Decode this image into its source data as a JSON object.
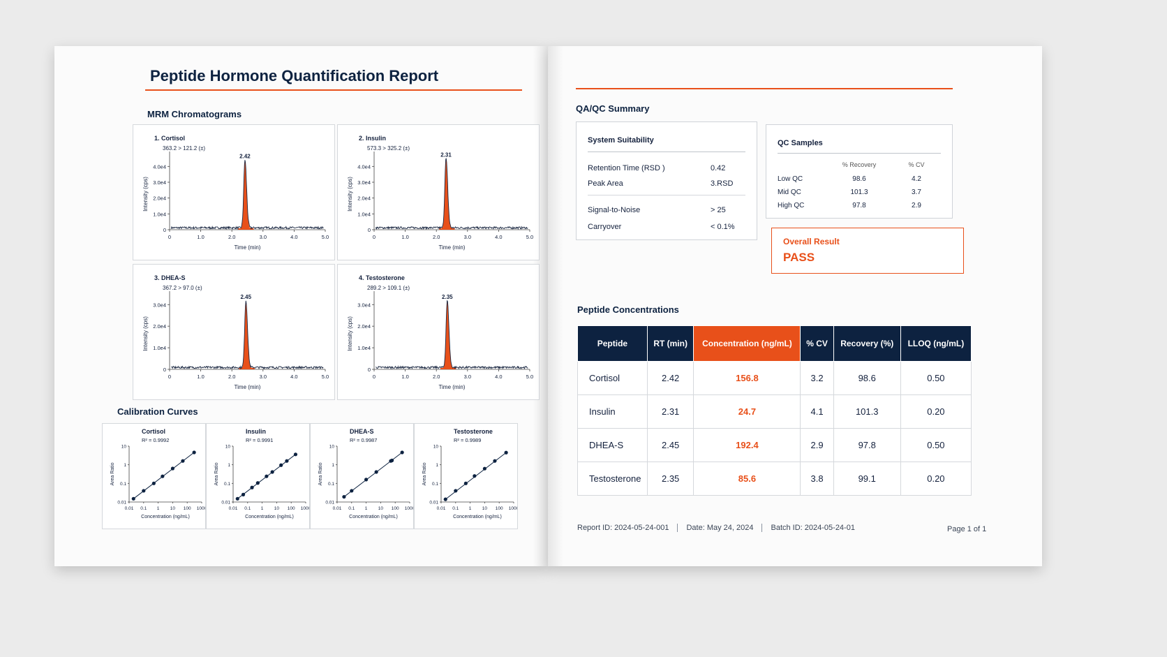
{
  "header": {
    "title": "Peptide Hormone Quantification Report"
  },
  "chromatograms": {
    "heading": "MRM Chromatograms",
    "x_label": "Time (min)",
    "y_label": "Intensity (cps)",
    "color": "#e8501a",
    "xlim": [
      0,
      5
    ],
    "xticks": [
      0,
      {
        "value": 1,
        "label": "1.0"
      },
      {
        "value": 2,
        "label": "2.0"
      },
      {
        "value": 3,
        "label": "3.0"
      },
      {
        "value": 4,
        "label": "4.0"
      },
      {
        "value": 5,
        "label": "5.0"
      }
    ],
    "panels": [
      {
        "label": "1. Cortisol",
        "transition": "363.2 > 121.2 (±)",
        "peak_rt": 2.42,
        "peak_height": 43000,
        "ylim": [
          0,
          45000
        ],
        "yticks": [
          0,
          {
            "value": 10000,
            "label": "1.0e4"
          },
          {
            "value": 20000,
            "label": "2.0e4"
          },
          {
            "value": 30000,
            "label": "3.0e4"
          },
          {
            "value": 40000,
            "label": "4.0e4"
          }
        ]
      },
      {
        "label": "2. Insulin",
        "transition": "573.3 > 325.2 (±)",
        "peak_rt": 2.31,
        "peak_height": 44000,
        "ylim": [
          0,
          45000
        ],
        "yticks": [
          0,
          {
            "value": 10000,
            "label": "1.0e4"
          },
          {
            "value": 20000,
            "label": "2.0e4"
          },
          {
            "value": 30000,
            "label": "3.0e4"
          },
          {
            "value": 40000,
            "label": "4.0e4"
          }
        ]
      },
      {
        "label": "3. DHEA-S",
        "transition": "367.2 > 97.0 (±)",
        "peak_rt": 2.45,
        "peak_height": 31000,
        "ylim": [
          0,
          33000
        ],
        "yticks": [
          0,
          {
            "value": 10000,
            "label": "1.0e4"
          },
          {
            "value": 20000,
            "label": "2.0e4"
          },
          {
            "value": 30000,
            "label": "3.0e4"
          }
        ]
      },
      {
        "label": "4. Testosterone",
        "transition": "289.2 > 109.1 (±)",
        "peak_rt": 2.35,
        "peak_height": 31000,
        "ylim": [
          0,
          33000
        ],
        "yticks": [
          0,
          {
            "value": 10000,
            "label": "1.0e4"
          },
          {
            "value": 20000,
            "label": "2.0e4"
          },
          {
            "value": 30000,
            "label": "3.0e4"
          }
        ]
      }
    ]
  },
  "calibration": {
    "heading": "Calibration Curves",
    "x_label": "Concentration (ng/mL)",
    "y_label": "Area Ratio",
    "log_scale": true,
    "color": "#0d2240",
    "xlim": [
      0.01,
      1000
    ],
    "xticks": [
      0.01,
      0.1,
      1,
      10,
      100,
      1000
    ],
    "ylim": [
      0.01,
      10
    ],
    "yticks": [
      0.01,
      0.1,
      1,
      10
    ],
    "curves": [
      {
        "name": "Cortisol",
        "r2_label": "R² = 0.9992",
        "x": [
          0.02,
          0.1,
          0.5,
          2,
          10,
          50,
          300
        ],
        "y": [
          0.015,
          0.04,
          0.1,
          0.24,
          0.63,
          1.6,
          4.6
        ]
      },
      {
        "name": "Insulin",
        "r2_label": "R² = 0.9991",
        "x": [
          0.02,
          0.05,
          0.2,
          0.5,
          2,
          5,
          20,
          50,
          200
        ],
        "y": [
          0.015,
          0.025,
          0.06,
          0.105,
          0.24,
          0.41,
          0.95,
          1.6,
          3.6
        ]
      },
      {
        "name": "DHEA-S",
        "r2_label": "R² = 0.9987",
        "x": [
          0.03,
          0.1,
          1,
          5,
          50,
          60,
          300
        ],
        "y": [
          0.019,
          0.04,
          0.16,
          0.41,
          1.6,
          1.7,
          4.6
        ]
      },
      {
        "name": "Testosterone",
        "r2_label": "R² = 0.9989",
        "x": [
          0.02,
          0.1,
          0.5,
          2,
          10,
          50,
          300
        ],
        "y": [
          0.014,
          0.04,
          0.1,
          0.25,
          0.62,
          1.6,
          4.5
        ]
      }
    ]
  },
  "qa": {
    "heading": "QA/QC Summary",
    "system": {
      "title": "System Suitability",
      "rows": [
        [
          "Retention Time (RSD )",
          "0.42"
        ],
        [
          "Peak Area",
          "3.RSD"
        ],
        [
          "Signal-to-Noise",
          "> 25"
        ],
        [
          "Carryover",
          "< 0.1%"
        ]
      ]
    },
    "qc": {
      "title": "QC Samples",
      "columns": [
        "% Recovery",
        "% CV"
      ],
      "rows": [
        [
          "Low QC",
          98.6,
          4.2
        ],
        [
          "Mid QC",
          101.3,
          3.7
        ],
        [
          "High QC",
          97.8,
          2.9
        ]
      ]
    },
    "overall": {
      "label": "Overall Result",
      "value": "PASS"
    }
  },
  "concentrations": {
    "heading": "Peptide Concentrations",
    "columns": [
      "Peptide",
      "RT (min)",
      "Concentration (ng/mL)",
      "% CV",
      "Recovery (%)",
      "LLOQ (ng/mL)"
    ],
    "rows": [
      [
        "Cortisol",
        2.42,
        156.8,
        3.2,
        98.6,
        "0.50"
      ],
      [
        "Insulin",
        2.31,
        24.7,
        4.1,
        101.3,
        "0.20"
      ],
      [
        "DHEA-S",
        2.45,
        192.4,
        2.9,
        97.8,
        "0.50"
      ],
      [
        "Testosterone",
        2.35,
        85.6,
        3.8,
        99.1,
        "0.20"
      ]
    ]
  },
  "footer": {
    "items": [
      "Report ID: 2024-05-24-001",
      "Date: May 24, 2024",
      "Batch ID: 2024-05-24-01"
    ],
    "page": "Page 1 of 1"
  }
}
